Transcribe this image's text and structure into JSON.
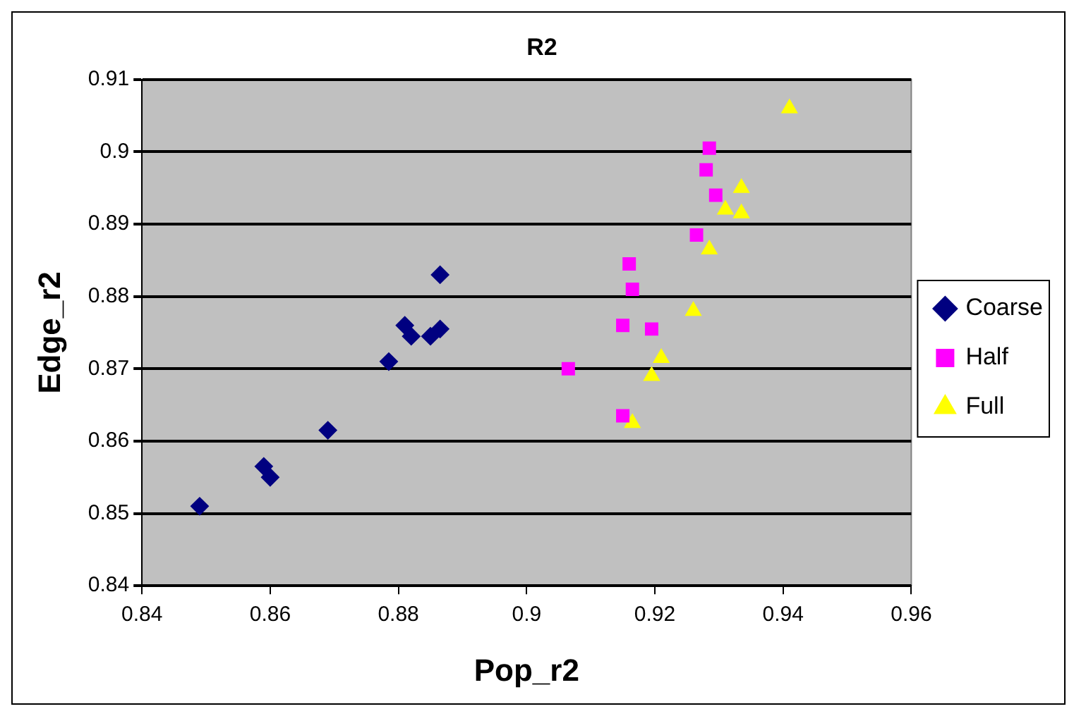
{
  "chart_data": {
    "type": "scatter",
    "title": "R2",
    "xlabel": "Pop_r2",
    "ylabel": "Edge_r2",
    "xlim": [
      0.84,
      0.96
    ],
    "xticks": [
      0.84,
      0.86,
      0.88,
      0.9,
      0.92,
      0.94,
      0.96
    ],
    "ylim": [
      0.84,
      0.91
    ],
    "yticks": [
      0.84,
      0.85,
      0.86,
      0.87,
      0.88,
      0.89,
      0.9,
      0.91
    ],
    "grid": "y",
    "legend": "right",
    "series": [
      {
        "name": "Coarse",
        "color": "#000080",
        "marker": "diamond",
        "x": [
          0.849,
          0.859,
          0.86,
          0.869,
          0.8785,
          0.881,
          0.882,
          0.885,
          0.8865,
          0.8865
        ],
        "values": [
          0.851,
          0.8565,
          0.855,
          0.8615,
          0.871,
          0.876,
          0.8745,
          0.8745,
          0.8755,
          0.883
        ]
      },
      {
        "name": "Half",
        "color": "#ff00ff",
        "marker": "square",
        "x": [
          0.9065,
          0.915,
          0.915,
          0.916,
          0.9165,
          0.9195,
          0.9265,
          0.928,
          0.9285,
          0.9295
        ],
        "values": [
          0.87,
          0.8635,
          0.876,
          0.8845,
          0.881,
          0.8755,
          0.8885,
          0.8975,
          0.9005,
          0.894
        ]
      },
      {
        "name": "Full",
        "color": "#ffff00",
        "marker": "triangle",
        "x": [
          0.9165,
          0.9195,
          0.921,
          0.926,
          0.9285,
          0.931,
          0.933,
          0.9335,
          0.9335,
          0.941
        ],
        "values": [
          0.8625,
          0.869,
          0.8715,
          0.878,
          0.8865,
          0.892,
          null,
          0.895,
          0.8915,
          0.906
        ]
      }
    ]
  }
}
